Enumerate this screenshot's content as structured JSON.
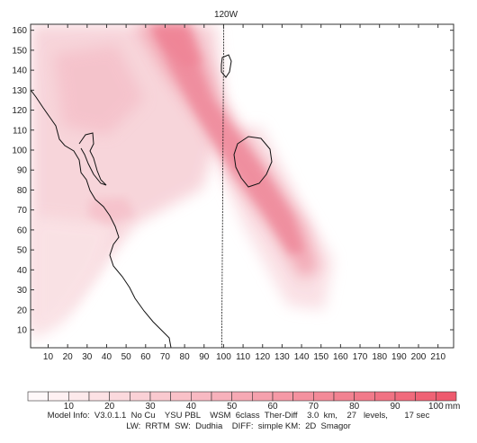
{
  "map": {
    "title": "120W",
    "x_axis": {
      "ticks": [
        10,
        20,
        30,
        40,
        50,
        60,
        70,
        80,
        90,
        100,
        110,
        120,
        130,
        140,
        150,
        160,
        170,
        180,
        190,
        200,
        210
      ],
      "range": [
        1,
        218
      ]
    },
    "y_axis": {
      "ticks": [
        10,
        20,
        30,
        40,
        50,
        60,
        70,
        80,
        90,
        100,
        110,
        120,
        130,
        140,
        150,
        160
      ],
      "range": [
        1,
        163
      ]
    },
    "meridian_x": 100,
    "fill_color": "#ee5a6e"
  },
  "colorbar": {
    "labels": [
      "10",
      "20",
      "30",
      "40",
      "50",
      "60",
      "70",
      "80",
      "90",
      "100",
      "mm"
    ],
    "levels": [
      0,
      5,
      10,
      15,
      20,
      25,
      30,
      35,
      40,
      45,
      50,
      55,
      60,
      65,
      70,
      75,
      80,
      85,
      90,
      95,
      100,
      105
    ]
  },
  "info": {
    "line1": "Model Info:  V3.0.1.1  No Cu    YSU PBL    WSM  6class  Ther-Diff    3.0  km,    27   levels,       17 sec",
    "line2": "LW:  RRTM  SW:  Dudhia    DIFF:  simple KM:  2D  Smagor"
  }
}
